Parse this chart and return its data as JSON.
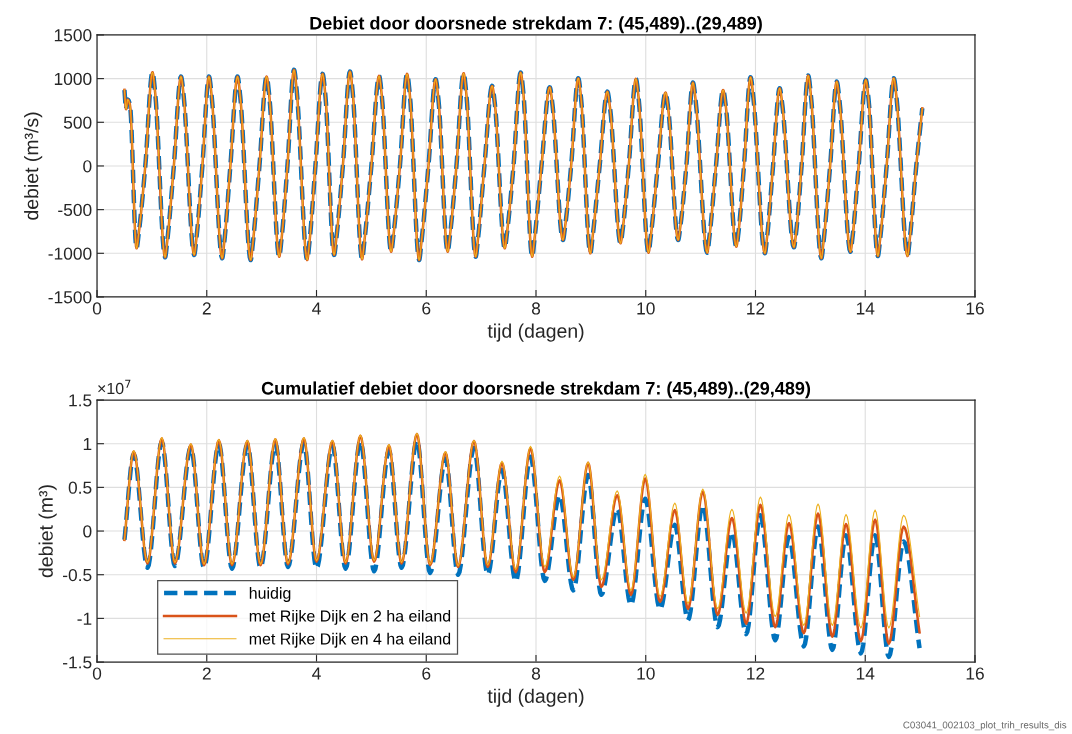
{
  "chart_data": [
    {
      "type": "line",
      "title": "Debiet door doorsnede strekdam 7: (45,489)..(29,489)",
      "xlabel": "tijd (dagen)",
      "ylabel": "debiet (m³/s)",
      "x": [
        0.5,
        0.53,
        0.56,
        0.6,
        0.72,
        0.76,
        0.88,
        1.01,
        1.06,
        1.24,
        1.28,
        1.4,
        1.53,
        1.58,
        1.77,
        1.81,
        1.92,
        2.04,
        2.09,
        2.28,
        2.32,
        2.43,
        2.56,
        2.61,
        2.8,
        2.84,
        2.96,
        3.09,
        3.14,
        3.32,
        3.36,
        3.47,
        3.59,
        3.64,
        3.83,
        3.87,
        3.98,
        4.11,
        4.16,
        4.32,
        4.36,
        4.48,
        4.61,
        4.66,
        4.83,
        4.87,
        5.0,
        5.14,
        5.19,
        5.36,
        5.4,
        5.52,
        5.65,
        5.7,
        5.87,
        5.91,
        6.04,
        6.17,
        6.22,
        6.39,
        6.43,
        6.55,
        6.68,
        6.73,
        6.9,
        6.94,
        7.06,
        7.2,
        7.25,
        7.43,
        7.47,
        7.59,
        7.72,
        7.77,
        7.93,
        7.97,
        8.1,
        8.25,
        8.3,
        8.49,
        8.53,
        8.64,
        8.77,
        8.82,
        8.99,
        9.03,
        9.16,
        9.3,
        9.35,
        9.54,
        9.58,
        9.69,
        9.82,
        9.87,
        10.05,
        10.09,
        10.22,
        10.36,
        10.41,
        10.59,
        10.63,
        10.74,
        10.86,
        10.91,
        11.12,
        11.16,
        11.28,
        11.41,
        11.46,
        11.65,
        11.69,
        11.79,
        11.91,
        11.96,
        12.17,
        12.21,
        12.32,
        12.44,
        12.49,
        12.7,
        12.74,
        12.84,
        12.96,
        13.01,
        13.2,
        13.24,
        13.36,
        13.48,
        13.53,
        13.73,
        13.77,
        13.88,
        14.01,
        14.06,
        14.23,
        14.27,
        14.39,
        14.52,
        14.57,
        14.77,
        14.81,
        14.93,
        15.04
      ],
      "series": [
        {
          "color": "#0072bd",
          "line_style": "dashed",
          "values": [
            870,
            650,
            760,
            700,
            -943,
            -773,
            0,
            1073,
            837,
            -1046,
            -858,
            0,
            1023,
            798,
            -1019,
            -836,
            0,
            1023,
            798,
            -1057,
            -867,
            0,
            1023,
            798,
            -1077,
            -883,
            0,
            1023,
            798,
            -1039,
            -852,
            0,
            1100,
            858,
            -1077,
            -883,
            0,
            1054,
            822,
            -1019,
            -836,
            0,
            1080,
            842,
            -1069,
            -877,
            0,
            1031,
            804,
            -982,
            -805,
            0,
            1054,
            822,
            -1077,
            -883,
            0,
            993,
            775,
            -982,
            -805,
            0,
            1062,
            828,
            -1039,
            -852,
            0,
            916,
            714,
            -943,
            -773,
            0,
            1069,
            834,
            -1039,
            -852,
            0,
            901,
            703,
            -848,
            -695,
            0,
            1004,
            783,
            -1000,
            -820,
            0,
            851,
            664,
            -885,
            -726,
            0,
            997,
            778,
            -993,
            -814,
            0,
            840,
            655,
            -848,
            -695,
            0,
            954,
            744,
            -993,
            -814,
            0,
            870,
            679,
            -924,
            -758,
            0,
            1016,
            792,
            -1000,
            -820,
            0,
            890,
            694,
            -931,
            -763,
            0,
            1034,
            807,
            -1057,
            -867,
            0,
            966,
            753,
            -982,
            -805,
            0,
            985,
            768,
            -1031,
            -845,
            0,
            1004,
            783,
            -1031,
            -845,
            0,
            660
          ]
        },
        {
          "color": "#d95319",
          "line_style": "solid",
          "values": [
            870,
            650,
            760,
            700,
            -943,
            -773,
            0,
            1073,
            837,
            -1046,
            -858,
            0,
            1023,
            798,
            -1019,
            -836,
            0,
            1023,
            798,
            -1057,
            -867,
            0,
            1023,
            798,
            -1077,
            -883,
            0,
            1023,
            798,
            -1039,
            -852,
            0,
            1100,
            858,
            -1077,
            -883,
            0,
            1054,
            822,
            -1019,
            -836,
            0,
            1080,
            842,
            -1069,
            -877,
            0,
            1031,
            804,
            -982,
            -805,
            0,
            1054,
            822,
            -1077,
            -883,
            0,
            993,
            775,
            -982,
            -805,
            0,
            1062,
            828,
            -1039,
            -852,
            0,
            916,
            714,
            -943,
            -773,
            0,
            1069,
            834,
            -1039,
            -852,
            0,
            901,
            703,
            -848,
            -695,
            0,
            1004,
            783,
            -1000,
            -820,
            0,
            851,
            664,
            -885,
            -726,
            0,
            997,
            778,
            -993,
            -814,
            0,
            840,
            655,
            -848,
            -695,
            0,
            954,
            744,
            -993,
            -814,
            0,
            870,
            679,
            -924,
            -758,
            0,
            1016,
            792,
            -1000,
            -820,
            0,
            890,
            694,
            -931,
            -763,
            0,
            1034,
            807,
            -1057,
            -867,
            0,
            966,
            753,
            -982,
            -805,
            0,
            985,
            768,
            -1031,
            -845,
            0,
            1004,
            783,
            -1031,
            -845,
            0,
            660
          ]
        },
        {
          "color": "#edb120",
          "line_style": "solid",
          "values": [
            870,
            650,
            760,
            700,
            -943,
            -773,
            0,
            1073,
            837,
            -1046,
            -858,
            0,
            1023,
            798,
            -1019,
            -836,
            0,
            1023,
            798,
            -1057,
            -867,
            0,
            1023,
            798,
            -1077,
            -883,
            0,
            1023,
            798,
            -1039,
            -852,
            0,
            1100,
            858,
            -1077,
            -883,
            0,
            1054,
            822,
            -1019,
            -836,
            0,
            1080,
            842,
            -1069,
            -877,
            0,
            1031,
            804,
            -982,
            -805,
            0,
            1054,
            822,
            -1077,
            -883,
            0,
            993,
            775,
            -982,
            -805,
            0,
            1062,
            828,
            -1039,
            -852,
            0,
            916,
            714,
            -943,
            -773,
            0,
            1069,
            834,
            -1039,
            -852,
            0,
            901,
            703,
            -848,
            -695,
            0,
            1004,
            783,
            -1000,
            -820,
            0,
            851,
            664,
            -885,
            -726,
            0,
            997,
            778,
            -993,
            -814,
            0,
            840,
            655,
            -848,
            -695,
            0,
            954,
            744,
            -993,
            -814,
            0,
            870,
            679,
            -924,
            -758,
            0,
            1016,
            792,
            -1000,
            -820,
            0,
            890,
            694,
            -931,
            -763,
            0,
            1034,
            807,
            -1057,
            -867,
            0,
            966,
            753,
            -982,
            -805,
            0,
            985,
            768,
            -1031,
            -845,
            0,
            1004,
            783,
            -1031,
            -845,
            0,
            660
          ]
        }
      ],
      "xlim": [
        0,
        16
      ],
      "xticks": [
        0,
        2,
        4,
        6,
        8,
        10,
        12,
        14,
        16
      ],
      "ylim": [
        -1500,
        1500
      ],
      "yticks": [
        -1500,
        -1000,
        -500,
        0,
        500,
        1000,
        1500
      ],
      "grid": true
    },
    {
      "type": "line",
      "title": "Cumulatief debiet door doorsnede strekdam 7: (45,489)..(29,489)",
      "xlabel": "tijd (dagen)",
      "ylabel": "debiet (m³)",
      "annotations": [
        "×10$^{7}$",
        "C03041_002103_plot_trih_results_dis"
      ],
      "x": [
        0.5,
        0.67,
        0.92,
        1.18,
        1.42,
        1.71,
        1.95,
        2.22,
        2.46,
        2.74,
        2.98,
        3.25,
        3.48,
        3.77,
        4.0,
        4.29,
        4.53,
        4.8,
        5.05,
        5.32,
        5.55,
        5.83,
        6.07,
        6.35,
        6.58,
        6.87,
        7.12,
        7.38,
        7.63,
        7.9,
        8.16,
        8.43,
        8.68,
        8.95,
        9.19,
        9.48,
        9.73,
        9.99,
        10.26,
        10.53,
        10.77,
        11.04,
        11.31,
        11.57,
        11.83,
        12.09,
        12.36,
        12.61,
        12.88,
        13.14,
        13.4,
        13.65,
        13.92,
        14.18,
        14.43,
        14.7,
        14.99
      ],
      "series": [
        {
          "name": "huidig",
          "color": "#0072bd",
          "line_style": "dashed",
          "values": [
            -0.1,
            0.88,
            -0.42,
            1.02,
            -0.4,
            0.96,
            -0.42,
            1.0,
            -0.43,
            0.99,
            -0.42,
            1.0,
            -0.41,
            1.01,
            -0.43,
            0.98,
            -0.43,
            1.03,
            -0.46,
            0.92,
            -0.42,
            1.04,
            -0.48,
            0.83,
            -0.5,
            0.95,
            -0.5,
            0.7,
            -0.58,
            0.85,
            -0.57,
            0.41,
            -0.68,
            0.64,
            -0.73,
            0.26,
            -0.85,
            0.37,
            -0.9,
            0.07,
            -1.02,
            0.3,
            -1.1,
            -0.01,
            -1.18,
            0.18,
            -1.25,
            -0.07,
            -1.32,
            0.05,
            -1.36,
            -0.05,
            -1.4,
            -0.05,
            -1.44,
            -0.12,
            -1.34
          ]
        },
        {
          "name": "met Rijke Dijk en 2 ha eiland",
          "color": "#d95319",
          "line_style": "solid",
          "values": [
            -0.1,
            0.91,
            -0.37,
            1.06,
            -0.37,
            0.99,
            -0.39,
            1.04,
            -0.39,
            1.03,
            -0.39,
            1.05,
            -0.38,
            1.06,
            -0.35,
            1.03,
            -0.37,
            1.09,
            -0.35,
            0.98,
            -0.37,
            1.11,
            -0.39,
            0.9,
            -0.41,
            1.03,
            -0.41,
            0.78,
            -0.47,
            0.95,
            -0.47,
            0.58,
            -0.56,
            0.78,
            -0.64,
            0.41,
            -0.73,
            0.6,
            -0.81,
            0.24,
            -0.89,
            0.45,
            -0.96,
            0.15,
            -1.06,
            0.3,
            -1.1,
            0.09,
            -1.17,
            0.2,
            -1.21,
            0.08,
            -1.26,
            0.13,
            -1.29,
            0.05,
            -1.16
          ]
        },
        {
          "name": "met Rijke Dijk en 4 ha eiland",
          "color": "#edb120",
          "line_style": "solid",
          "values": [
            -0.1,
            0.92,
            -0.36,
            1.07,
            -0.36,
            1.0,
            -0.38,
            1.05,
            -0.38,
            1.04,
            -0.38,
            1.06,
            -0.37,
            1.07,
            -0.34,
            1.04,
            -0.36,
            1.1,
            -0.34,
            0.99,
            -0.36,
            1.12,
            -0.38,
            0.91,
            -0.4,
            1.04,
            -0.39,
            0.8,
            -0.44,
            0.97,
            -0.41,
            0.63,
            -0.53,
            0.79,
            -0.56,
            0.46,
            -0.68,
            0.65,
            -0.75,
            0.32,
            -0.83,
            0.48,
            -0.89,
            0.25,
            -0.94,
            0.39,
            -0.98,
            0.19,
            -1.08,
            0.31,
            -1.08,
            0.19,
            -1.11,
            0.24,
            -1.11,
            0.18,
            -0.98
          ]
        }
      ],
      "xlim": [
        0,
        16
      ],
      "xticks": [
        0,
        2,
        4,
        6,
        8,
        10,
        12,
        14,
        16
      ],
      "ylim": [
        -1.5,
        1.5
      ],
      "yticks": [
        -1.5,
        -1,
        -0.5,
        0,
        0.5,
        1,
        1.5
      ],
      "grid": true,
      "legend": "bottom left"
    }
  ]
}
